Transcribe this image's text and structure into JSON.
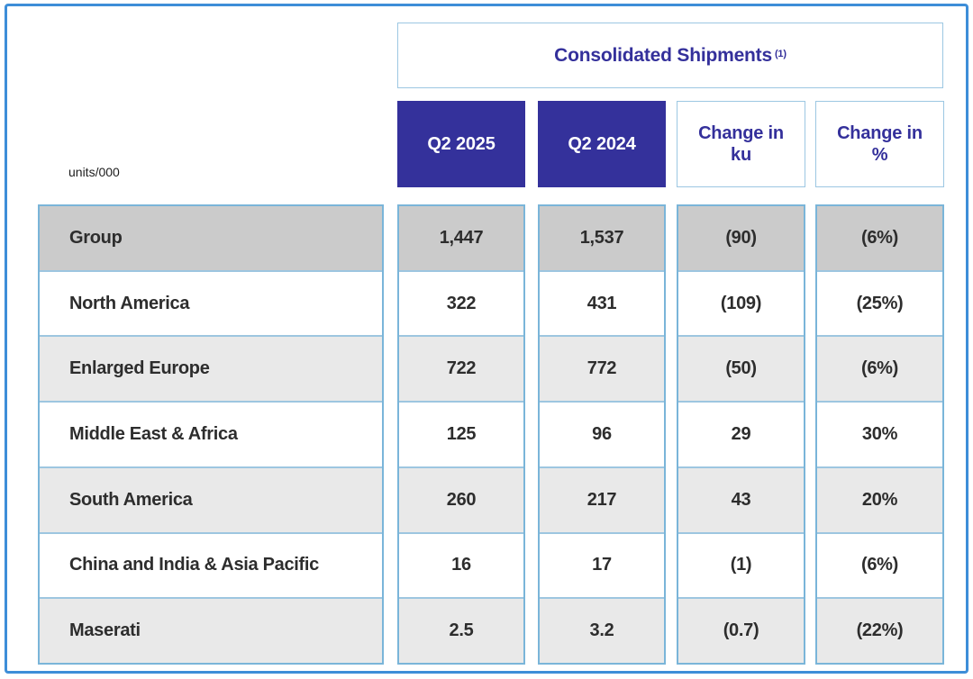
{
  "units_label": "units/000",
  "title": {
    "text": "Consolidated Shipments",
    "footnote_marker": "(1)"
  },
  "columns": {
    "q2_2025": "Q2 2025",
    "q2_2024": "Q2 2024",
    "change_ku": "Change in ku",
    "change_pct": "Change in %"
  },
  "table": {
    "rows": [
      {
        "label": "Group",
        "q2_2025": "1,447",
        "q2_2024": "1,537",
        "change_ku": "(90)",
        "change_pct": "(6%)"
      },
      {
        "label": "North America",
        "q2_2025": "322",
        "q2_2024": "431",
        "change_ku": "(109)",
        "change_pct": "(25%)"
      },
      {
        "label": "Enlarged Europe",
        "q2_2025": "722",
        "q2_2024": "772",
        "change_ku": "(50)",
        "change_pct": "(6%)"
      },
      {
        "label": "Middle East & Africa",
        "q2_2025": "125",
        "q2_2024": "96",
        "change_ku": "29",
        "change_pct": "30%"
      },
      {
        "label": "South America",
        "q2_2025": "260",
        "q2_2024": "217",
        "change_ku": "43",
        "change_pct": "20%"
      },
      {
        "label": "China and India & Asia Pacific",
        "q2_2025": "16",
        "q2_2024": "17",
        "change_ku": "(1)",
        "change_pct": "(6%)"
      },
      {
        "label": "Maserati",
        "q2_2025": "2.5",
        "q2_2024": "3.2",
        "change_ku": "(0.7)",
        "change_pct": "(22%)"
      }
    ]
  },
  "colors": {
    "frame_border": "#3e8ed8",
    "pillar_border": "#7ab5d9",
    "header_solid_bg": "#34319b",
    "accent_text": "#34309b",
    "group_row_bg": "#cbcbcb",
    "alt_row_bg": "#e9e9e9",
    "body_text": "#2d2d2d"
  }
}
